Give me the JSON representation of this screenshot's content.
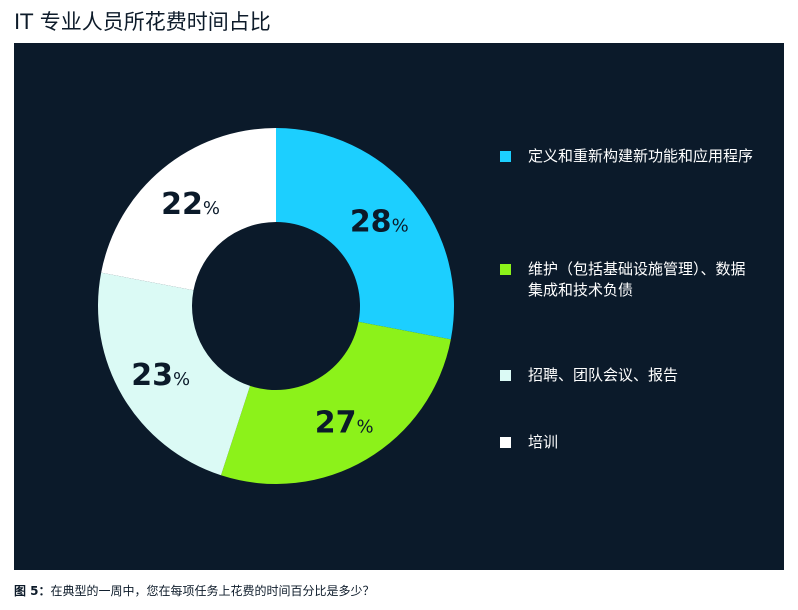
{
  "title": "IT 专业人员所花费时间占比",
  "chart_data": {
    "type": "pie",
    "variant": "donut",
    "categories": [
      "定义和重新构建新功能和应用程序",
      "维护（包括基础设施管理）、数据集成和技术负债",
      "招聘、团队会议、报告",
      "培训"
    ],
    "values": [
      28,
      27,
      23,
      22
    ],
    "value_labels": [
      "28",
      "27",
      "23",
      "22"
    ],
    "unit": "%",
    "colors": [
      "#1ccfff",
      "#8cf21a",
      "#dbfaf5",
      "#ffffff"
    ],
    "label_colors": [
      "#0b1a2a",
      "#0b1a2a",
      "#0b1a2a",
      "#0b1a2a"
    ],
    "legend_position": "right",
    "start_angle_deg": 0,
    "direction": "clockwise"
  },
  "legend": [
    {
      "label": "定义和重新构建新功能和应用程序",
      "color": "#1ccfff"
    },
    {
      "label": "维护（包括基础设施管理）、数据集成和技术负债",
      "color": "#8cf21a"
    },
    {
      "label": "招聘、团队会议、报告",
      "color": "#dbfaf5"
    },
    {
      "label": "培训",
      "color": "#ffffff"
    }
  ],
  "caption": {
    "prefix": "图 5：",
    "text": "在典型的一周中，您在每项任务上花费的时间百分比是多少？"
  },
  "colors": {
    "panel_background": "#0b1a2a",
    "text_dark": "#0d1b2a"
  }
}
